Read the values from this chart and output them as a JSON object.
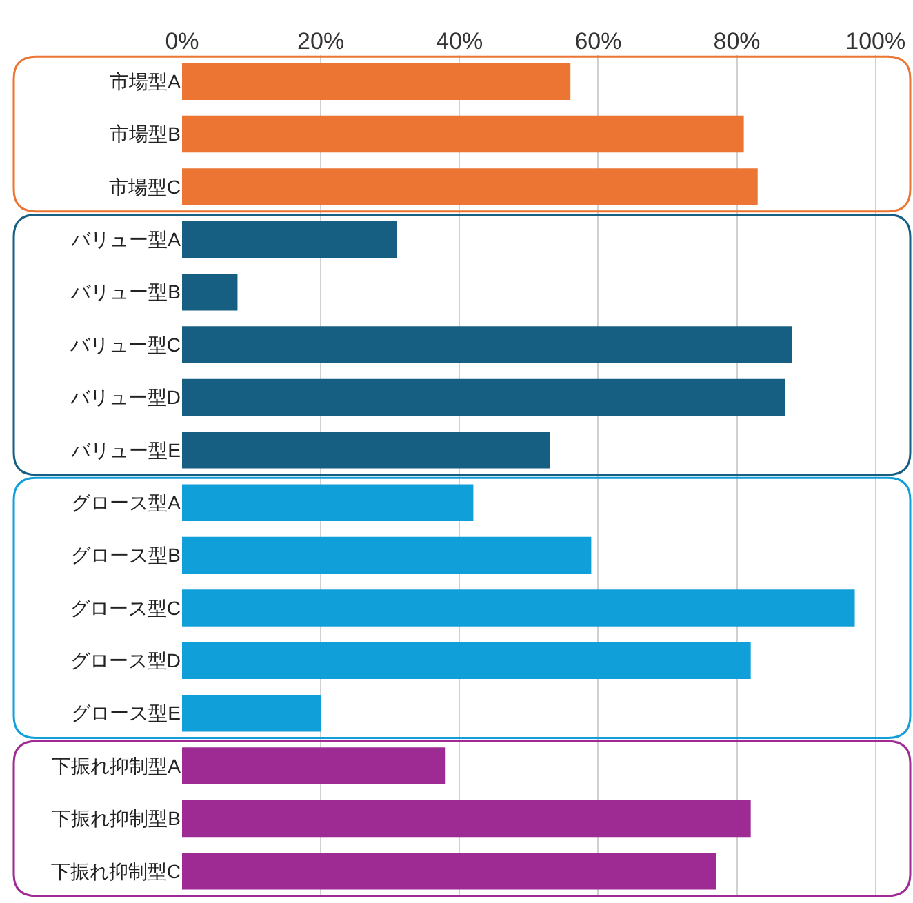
{
  "chart_data": {
    "type": "bar",
    "orientation": "horizontal",
    "categories": [
      "市場型A",
      "市場型B",
      "市場型C",
      "バリュー型A",
      "バリュー型B",
      "バリュー型C",
      "バリュー型D",
      "バリュー型E",
      "グロース型A",
      "グロース型B",
      "グロース型C",
      "グロース型D",
      "グロース型E",
      "下振れ抑制型A",
      "下振れ抑制型B",
      "下振れ抑制型C"
    ],
    "values": [
      56,
      81,
      83,
      31,
      8,
      88,
      87,
      53,
      42,
      59,
      97,
      82,
      20,
      38,
      82,
      77
    ],
    "colors": [
      "#ed7533",
      "#ed7533",
      "#ed7533",
      "#175f82",
      "#175f82",
      "#175f82",
      "#175f82",
      "#175f82",
      "#119fd9",
      "#119fd9",
      "#119fd9",
      "#119fd9",
      "#119fd9",
      "#9d2b93",
      "#9d2b93",
      "#9d2b93"
    ],
    "xlim": [
      0,
      105
    ],
    "xticks": [
      {
        "value": 0,
        "label": "0%"
      },
      {
        "value": 20,
        "label": "20%"
      },
      {
        "value": 40,
        "label": "40%"
      },
      {
        "value": 60,
        "label": "60%"
      },
      {
        "value": 80,
        "label": "80%"
      },
      {
        "value": 100,
        "label": "100%"
      }
    ],
    "grid": "x",
    "legend": false
  }
}
